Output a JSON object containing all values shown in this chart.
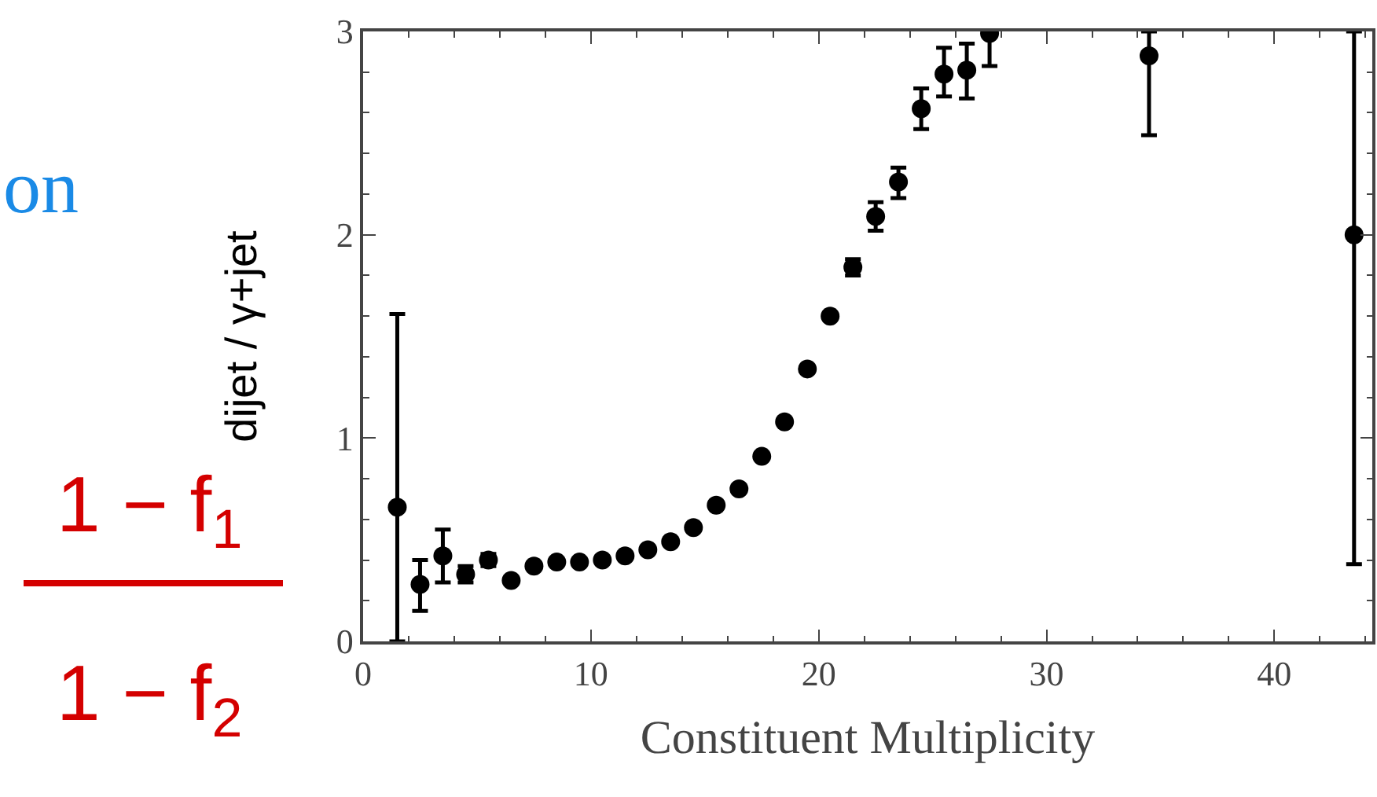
{
  "chart_data": {
    "type": "scatter",
    "xlabel": "Constituent Multiplicity",
    "ylabel": "dijet / γ+jet",
    "annotations": [
      "on",
      "1 − f$_{1}$",
      "1 − f$_{2}$"
    ],
    "x": [
      1.5,
      2.5,
      3.5,
      4.5,
      5.5,
      6.5,
      7.5,
      8.5,
      9.5,
      10.5,
      11.5,
      12.5,
      13.5,
      14.5,
      15.5,
      16.5,
      17.5,
      18.5,
      19.5,
      20.5,
      21.5,
      22.5,
      23.5,
      24.5,
      25.5,
      26.5,
      27.5,
      34.5,
      43.5
    ],
    "series": [
      {
        "color": "#000000",
        "values": [
          0.66,
          0.28,
          0.42,
          0.33,
          0.4,
          0.3,
          0.37,
          0.39,
          0.39,
          0.4,
          0.42,
          0.45,
          0.49,
          0.56,
          0.67,
          0.75,
          0.91,
          1.08,
          1.34,
          1.6,
          1.84,
          2.09,
          2.26,
          2.62,
          2.79,
          2.81,
          2.99,
          2.88,
          2.0
        ],
        "errors": [
          [
            0,
            1.61
          ],
          [
            0.15,
            0.4
          ],
          [
            0.29,
            0.55
          ],
          [
            0.29,
            0.37
          ],
          [
            0.37,
            0.43
          ],
          null,
          null,
          null,
          null,
          null,
          null,
          null,
          null,
          null,
          null,
          null,
          null,
          null,
          null,
          null,
          [
            1.8,
            1.88
          ],
          [
            2.02,
            2.16
          ],
          [
            2.18,
            2.33
          ],
          [
            2.52,
            2.72
          ],
          [
            2.68,
            2.92
          ],
          [
            2.67,
            2.94
          ],
          [
            2.83,
            3
          ],
          [
            2.49,
            3
          ],
          [
            0.38,
            3
          ]
        ]
      }
    ],
    "xlim": [
      0,
      44.3
    ],
    "ylim": [
      0,
      3
    ],
    "xticks": [
      0,
      10,
      20,
      30,
      40
    ],
    "yticks": [
      0,
      1,
      2,
      3
    ],
    "marker": "circle"
  }
}
